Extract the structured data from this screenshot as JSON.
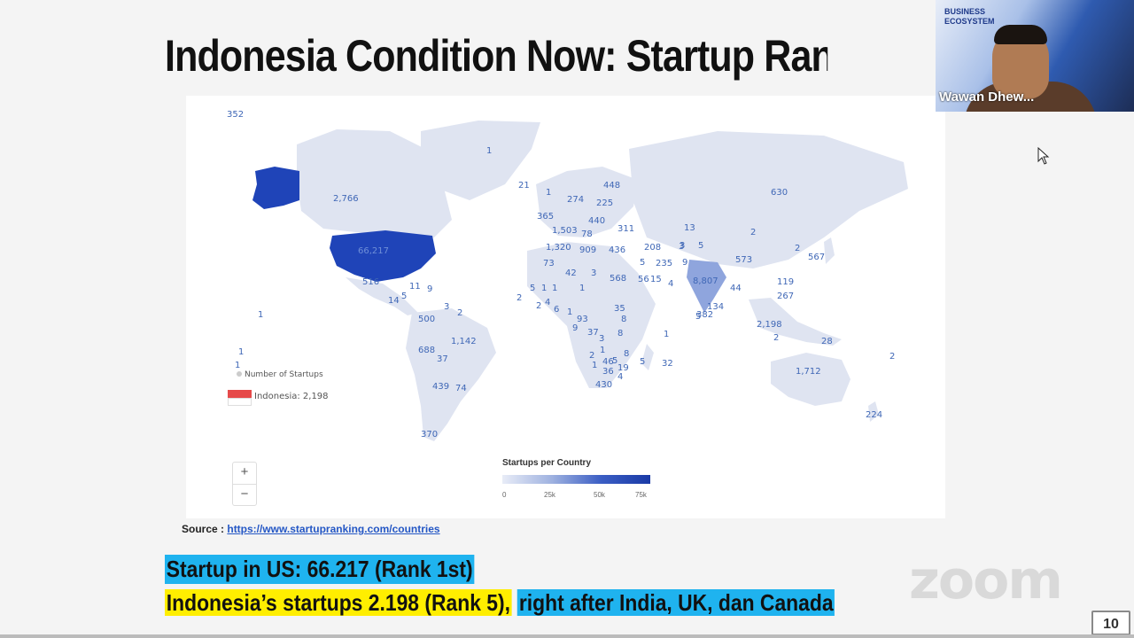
{
  "slide": {
    "title": "Indonesia Condition Now: Startup Rankir",
    "source_label": "Source : ",
    "source_link": "https://www.startupranking.com/countries",
    "line1": "Startup in US: 66.217 (Rank 1st)",
    "line2_yellow": "Indonesia’s startups 2.198  (Rank 5),",
    "line2_blue": "right after India, UK, dan Canada",
    "page_number": "10"
  },
  "map": {
    "legend_number_label": "Number of Startups",
    "indonesia_label": "Indonesia: 2,198",
    "scale_title": "Startups per Country",
    "scale_ticks": [
      "0",
      "25k",
      "50k",
      "75k"
    ],
    "zoom_in": "+",
    "zoom_out": "−",
    "labels": [
      "352",
      "2,766",
      "66,217",
      "516",
      "14",
      "5",
      "11",
      "9",
      "3",
      "2",
      "1",
      "1",
      "1",
      "500",
      "1,142",
      "688",
      "37",
      "439",
      "74",
      "370",
      "1",
      "21",
      "1",
      "365",
      "274",
      "225",
      "448",
      "440",
      "1,503",
      "78",
      "311",
      "13",
      "3",
      "5",
      "630",
      "2",
      "2",
      "567",
      "1,320",
      "909",
      "436",
      "208",
      "3",
      "73",
      "42",
      "3",
      "5",
      "235",
      "9",
      "573",
      "568",
      "56",
      "15",
      "4",
      "8,807",
      "44",
      "119",
      "267",
      "1",
      "5",
      "1",
      "2",
      "2",
      "4",
      "6",
      "1",
      "1",
      "93",
      "35",
      "8",
      "5",
      "382",
      "134",
      "2,198",
      "2",
      "28",
      "9",
      "37",
      "3",
      "8",
      "1",
      "2",
      "1",
      "46",
      "5",
      "19",
      "8",
      "5",
      "32",
      "1",
      "36",
      "4",
      "430",
      "1,712",
      "2",
      "224"
    ],
    "colors": {
      "land": "#dfe4f1",
      "us": "#1f44b8",
      "india": "#8fa5dd",
      "accent_label": "#3f67b6"
    }
  },
  "video": {
    "participant_name": "Wawan Dhew...",
    "banner_line1": "BUSINESS",
    "banner_line2": "ECOSYSTEM"
  },
  "app": {
    "watermark": "zoom"
  }
}
